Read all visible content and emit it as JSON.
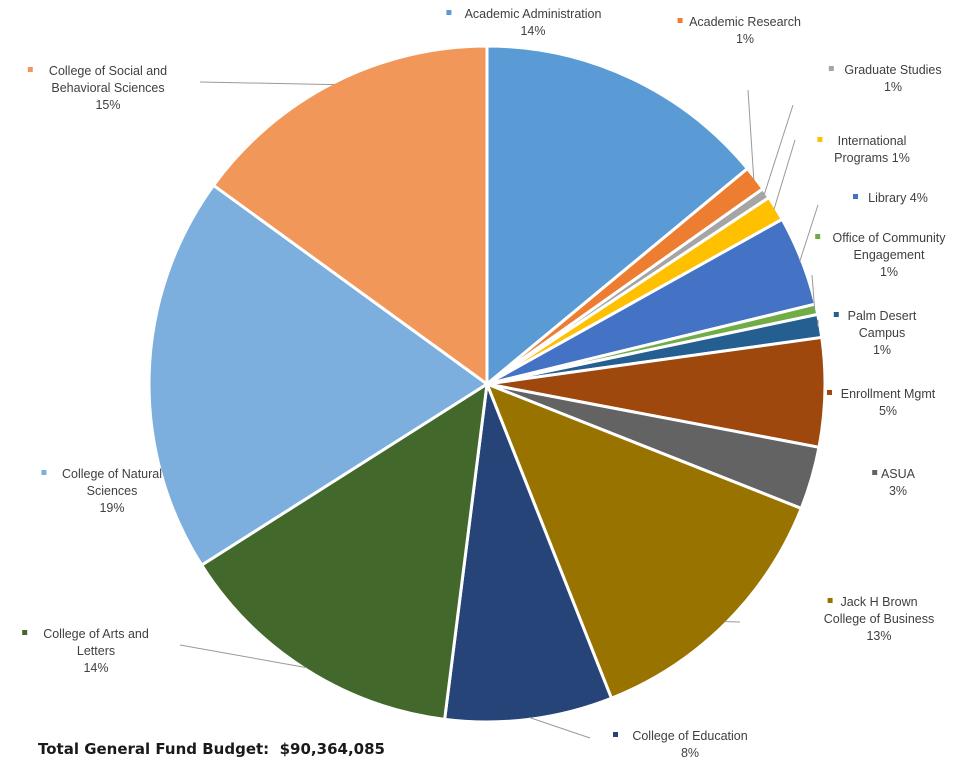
{
  "chart_data": {
    "type": "pie",
    "title": "",
    "slices": [
      {
        "label": "Academic Administration",
        "display_lines": [
          "Academic Administration"
        ],
        "percent_label": "14%",
        "value": 14,
        "color": "#5b9bd5"
      },
      {
        "label": "Academic Research",
        "display_lines": [
          "Academic Research"
        ],
        "percent_label": "1%",
        "value": 1.2,
        "color": "#ed7d31"
      },
      {
        "label": "Graduate Studies",
        "display_lines": [
          "Graduate Studies"
        ],
        "percent_label": "1%",
        "value": 0.5,
        "color": "#a5a5a5"
      },
      {
        "label": "International Programs",
        "display_lines": [
          "International",
          "Programs 1%"
        ],
        "percent_label": "",
        "value": 1.2,
        "color": "#ffc000"
      },
      {
        "label": "Library",
        "display_lines": [
          "Library 4%"
        ],
        "percent_label": "",
        "value": 4.3,
        "color": "#4472c4"
      },
      {
        "label": "Office of Community Engagement",
        "display_lines": [
          "Office of Community",
          "Engagement"
        ],
        "percent_label": "1%",
        "value": 0.5,
        "color": "#70ad47"
      },
      {
        "label": "Palm Desert Campus",
        "display_lines": [
          "Palm Desert",
          "Campus"
        ],
        "percent_label": "1%",
        "value": 1.1,
        "color": "#255e91"
      },
      {
        "label": "Enrollment Mgmt",
        "display_lines": [
          "Enrollment Mgmt"
        ],
        "percent_label": "5%",
        "value": 5.2,
        "color": "#9e480e"
      },
      {
        "label": "ASUA",
        "display_lines": [
          "ASUA"
        ],
        "percent_label": "3%",
        "value": 3,
        "color": "#636363"
      },
      {
        "label": "Jack H Brown College of Business",
        "display_lines": [
          "Jack H Brown",
          "College of Business"
        ],
        "percent_label": "13%",
        "value": 13,
        "color": "#997300"
      },
      {
        "label": "College of Education",
        "display_lines": [
          "College of Education"
        ],
        "percent_label": "8%",
        "value": 8,
        "color": "#264478"
      },
      {
        "label": "College of Arts and Letters",
        "display_lines": [
          "College of Arts and",
          "Letters"
        ],
        "percent_label": "14%",
        "value": 14,
        "color": "#43682b"
      },
      {
        "label": "College of Natural Sciences",
        "display_lines": [
          "College of Natural",
          "Sciences"
        ],
        "percent_label": "19%",
        "value": 19,
        "color": "#7cafdd"
      },
      {
        "label": "College of Social and Behavioral Sciences",
        "display_lines": [
          "College of Social and",
          "Behavioral Sciences"
        ],
        "percent_label": "15%",
        "value": 15,
        "color": "#f1975a"
      }
    ],
    "total_label": "Total General Fund Budget:",
    "total_value": "$90,364,085",
    "legend_position": "labels around pie with leader lines"
  }
}
